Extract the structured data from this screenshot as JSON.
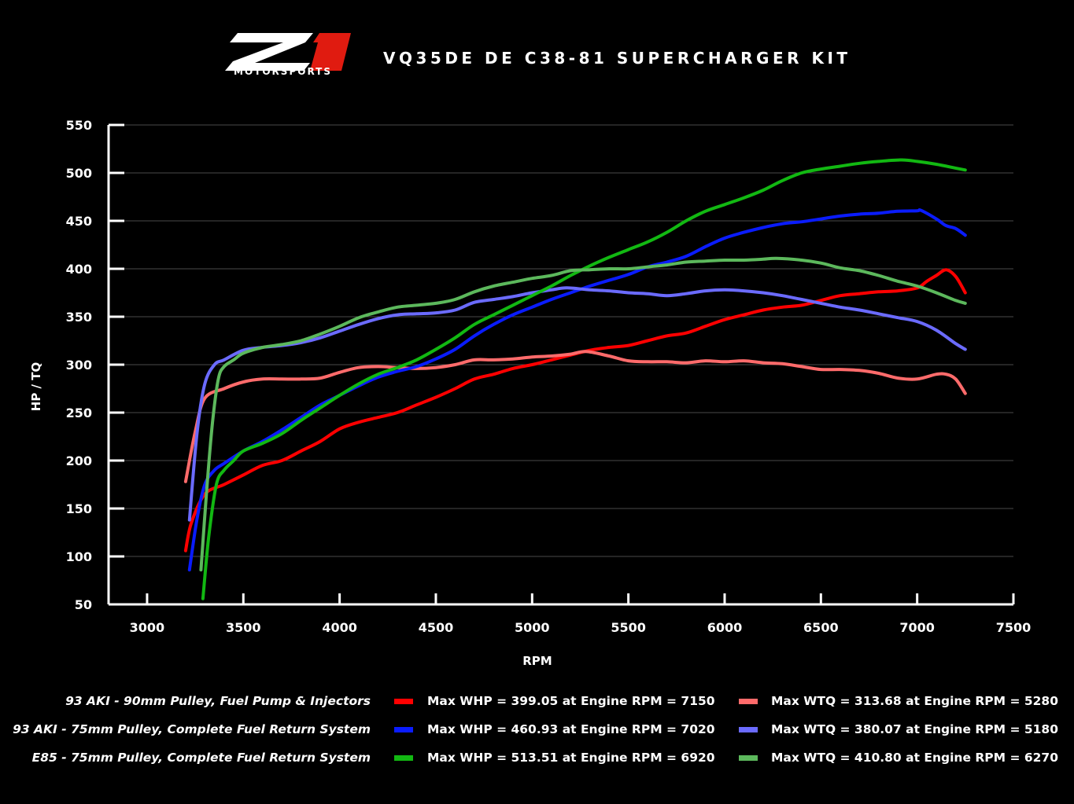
{
  "header": {
    "logo_text": "Z1",
    "logo_sub": "MOTORSPORTS",
    "title": "VQ35DE DE C38-81 SUPERCHARGER KIT"
  },
  "legend": [
    {
      "label": "93 AKI - 90mm Pulley, Fuel Pump & Injectors",
      "whp": "Max WHP = 399.05 at Engine RPM = 7150",
      "wtq": "Max WTQ = 313.68 at Engine RPM = 5280",
      "whp_color": "#ff0000",
      "wtq_color": "#ff6b6b"
    },
    {
      "label": "93 AKI - 75mm Pulley, Complete Fuel Return System",
      "whp": "Max WHP = 460.93 at Engine RPM = 7020",
      "wtq": "Max WTQ = 380.07 at Engine RPM = 5180",
      "whp_color": "#0a1cff",
      "wtq_color": "#6b6bff"
    },
    {
      "label": "E85 - 75mm Pulley, Complete Fuel Return System",
      "whp": "Max WHP = 513.51 at Engine RPM = 6920",
      "wtq": "Max WTQ = 410.80 at Engine RPM = 6270",
      "whp_color": "#12b812",
      "wtq_color": "#5cb85c"
    }
  ],
  "chart_data": {
    "type": "line",
    "title": "VQ35DE DE C38-81 SUPERCHARGER KIT",
    "xlabel": "RPM",
    "ylabel": "HP / TQ",
    "xlim": [
      2800,
      7500
    ],
    "ylim": [
      50,
      550
    ],
    "xticks": [
      3000,
      3500,
      4000,
      4500,
      5000,
      5500,
      6000,
      6500,
      7000,
      7500
    ],
    "yticks": [
      50,
      100,
      150,
      200,
      250,
      300,
      350,
      400,
      450,
      500,
      550
    ],
    "grid": "horizontal",
    "series": [
      {
        "name": "Max WHP = 399.05 at Engine RPM = 7150",
        "color": "#ff0000",
        "x": [
          3200,
          3230,
          3300,
          3400,
          3500,
          3600,
          3700,
          3800,
          3900,
          4000,
          4100,
          4200,
          4300,
          4400,
          4500,
          4600,
          4700,
          4800,
          4900,
          5000,
          5100,
          5200,
          5300,
          5400,
          5500,
          5600,
          5700,
          5800,
          5900,
          6000,
          6100,
          6200,
          6300,
          6400,
          6500,
          6600,
          6700,
          6800,
          6900,
          7000,
          7050,
          7100,
          7150,
          7200,
          7250
        ],
        "y": [
          106,
          135,
          165,
          175,
          185,
          195,
          200,
          210,
          220,
          233,
          240,
          245,
          250,
          258,
          266,
          275,
          285,
          290,
          296,
          300,
          305,
          310,
          315,
          318,
          320,
          325,
          330,
          333,
          340,
          347,
          352,
          357,
          360,
          362,
          367,
          372,
          374,
          376,
          377,
          380,
          387,
          393,
          399,
          392,
          375
        ]
      },
      {
        "name": "Max WTQ = 313.68 at Engine RPM = 5280",
        "color": "#ff6b6b",
        "x": [
          3200,
          3250,
          3300,
          3400,
          3500,
          3600,
          3700,
          3800,
          3900,
          4000,
          4100,
          4200,
          4300,
          4400,
          4500,
          4600,
          4700,
          4800,
          4900,
          5000,
          5100,
          5200,
          5280,
          5400,
          5500,
          5600,
          5700,
          5800,
          5900,
          6000,
          6100,
          6200,
          6300,
          6400,
          6500,
          6600,
          6700,
          6800,
          6900,
          7000,
          7100,
          7150,
          7200,
          7250
        ],
        "y": [
          178,
          230,
          265,
          275,
          282,
          285,
          285,
          285,
          286,
          292,
          297,
          298,
          297,
          296,
          297,
          300,
          305,
          305,
          306,
          308,
          309,
          311,
          313.68,
          309,
          304,
          303,
          303,
          302,
          304,
          303,
          304,
          302,
          301,
          298,
          295,
          295,
          294,
          291,
          286,
          285,
          290,
          290,
          285,
          270
        ]
      },
      {
        "name": "Max WHP = 460.93 at Engine RPM = 7020",
        "color": "#0a1cff",
        "x": [
          3220,
          3260,
          3300,
          3350,
          3400,
          3500,
          3600,
          3700,
          3800,
          3900,
          4000,
          4100,
          4200,
          4300,
          4400,
          4500,
          4600,
          4700,
          4800,
          4900,
          5000,
          5100,
          5200,
          5300,
          5400,
          5500,
          5600,
          5700,
          5800,
          5900,
          6000,
          6100,
          6200,
          6300,
          6400,
          6500,
          6600,
          6700,
          6800,
          6900,
          7000,
          7020,
          7100,
          7150,
          7200,
          7250
        ],
        "y": [
          86,
          140,
          175,
          190,
          197,
          210,
          220,
          232,
          245,
          258,
          268,
          278,
          287,
          293,
          298,
          306,
          316,
          330,
          342,
          352,
          360,
          368,
          375,
          382,
          388,
          394,
          402,
          407,
          413,
          423,
          432,
          438,
          443,
          447,
          449,
          452,
          455,
          457,
          458,
          460,
          460.5,
          460.9,
          452,
          445,
          442,
          435
        ]
      },
      {
        "name": "Max WTQ = 380.07 at Engine RPM = 5180",
        "color": "#6b6bff",
        "x": [
          3220,
          3260,
          3300,
          3350,
          3400,
          3500,
          3600,
          3700,
          3800,
          3900,
          4000,
          4100,
          4200,
          4300,
          4400,
          4500,
          4600,
          4700,
          4800,
          4900,
          5000,
          5100,
          5180,
          5300,
          5400,
          5500,
          5600,
          5700,
          5800,
          5900,
          6000,
          6100,
          6200,
          6300,
          6400,
          6500,
          6600,
          6700,
          6800,
          6900,
          7000,
          7100,
          7200,
          7250
        ],
        "y": [
          138,
          230,
          280,
          300,
          305,
          315,
          318,
          320,
          323,
          328,
          335,
          342,
          348,
          352,
          353,
          354,
          357,
          365,
          368,
          371,
          375,
          378,
          380.07,
          378,
          377,
          375,
          374,
          372,
          374,
          377,
          378,
          377,
          375,
          372,
          368,
          364,
          360,
          357,
          353,
          349,
          345,
          336,
          322,
          316
        ]
      },
      {
        "name": "Max WHP = 513.51 at Engine RPM = 6920",
        "color": "#12b812",
        "x": [
          3290,
          3320,
          3360,
          3400,
          3450,
          3500,
          3600,
          3700,
          3800,
          3900,
          4000,
          4100,
          4200,
          4300,
          4400,
          4500,
          4600,
          4700,
          4800,
          4900,
          5000,
          5100,
          5200,
          5300,
          5400,
          5500,
          5600,
          5700,
          5800,
          5900,
          6000,
          6100,
          6200,
          6300,
          6400,
          6500,
          6600,
          6700,
          6800,
          6920,
          7000,
          7100,
          7200,
          7250
        ],
        "y": [
          56,
          120,
          175,
          190,
          200,
          210,
          218,
          228,
          242,
          255,
          268,
          280,
          290,
          297,
          305,
          316,
          328,
          342,
          352,
          362,
          372,
          382,
          393,
          403,
          412,
          420,
          428,
          438,
          450,
          460,
          467,
          474,
          482,
          492,
          500,
          504,
          507,
          510,
          512,
          513.51,
          512,
          509,
          505,
          503
        ]
      },
      {
        "name": "Max WTQ = 410.80 at Engine RPM = 6270",
        "color": "#5cb85c",
        "x": [
          3280,
          3310,
          3340,
          3370,
          3400,
          3450,
          3500,
          3600,
          3700,
          3800,
          3900,
          4000,
          4100,
          4200,
          4300,
          4400,
          4500,
          4600,
          4700,
          4800,
          4900,
          5000,
          5100,
          5200,
          5300,
          5400,
          5500,
          5600,
          5700,
          5800,
          5900,
          6000,
          6100,
          6200,
          6270,
          6400,
          6500,
          6600,
          6700,
          6800,
          6900,
          7000,
          7100,
          7200,
          7250
        ],
        "y": [
          86,
          170,
          240,
          285,
          298,
          305,
          312,
          318,
          321,
          325,
          332,
          340,
          349,
          355,
          360,
          362,
          364,
          368,
          376,
          382,
          386,
          390,
          393,
          398,
          399,
          400,
          400,
          402,
          404,
          407,
          408,
          409,
          409,
          410,
          410.8,
          409,
          406,
          401,
          398,
          393,
          387,
          382,
          375,
          367,
          364
        ]
      }
    ]
  }
}
